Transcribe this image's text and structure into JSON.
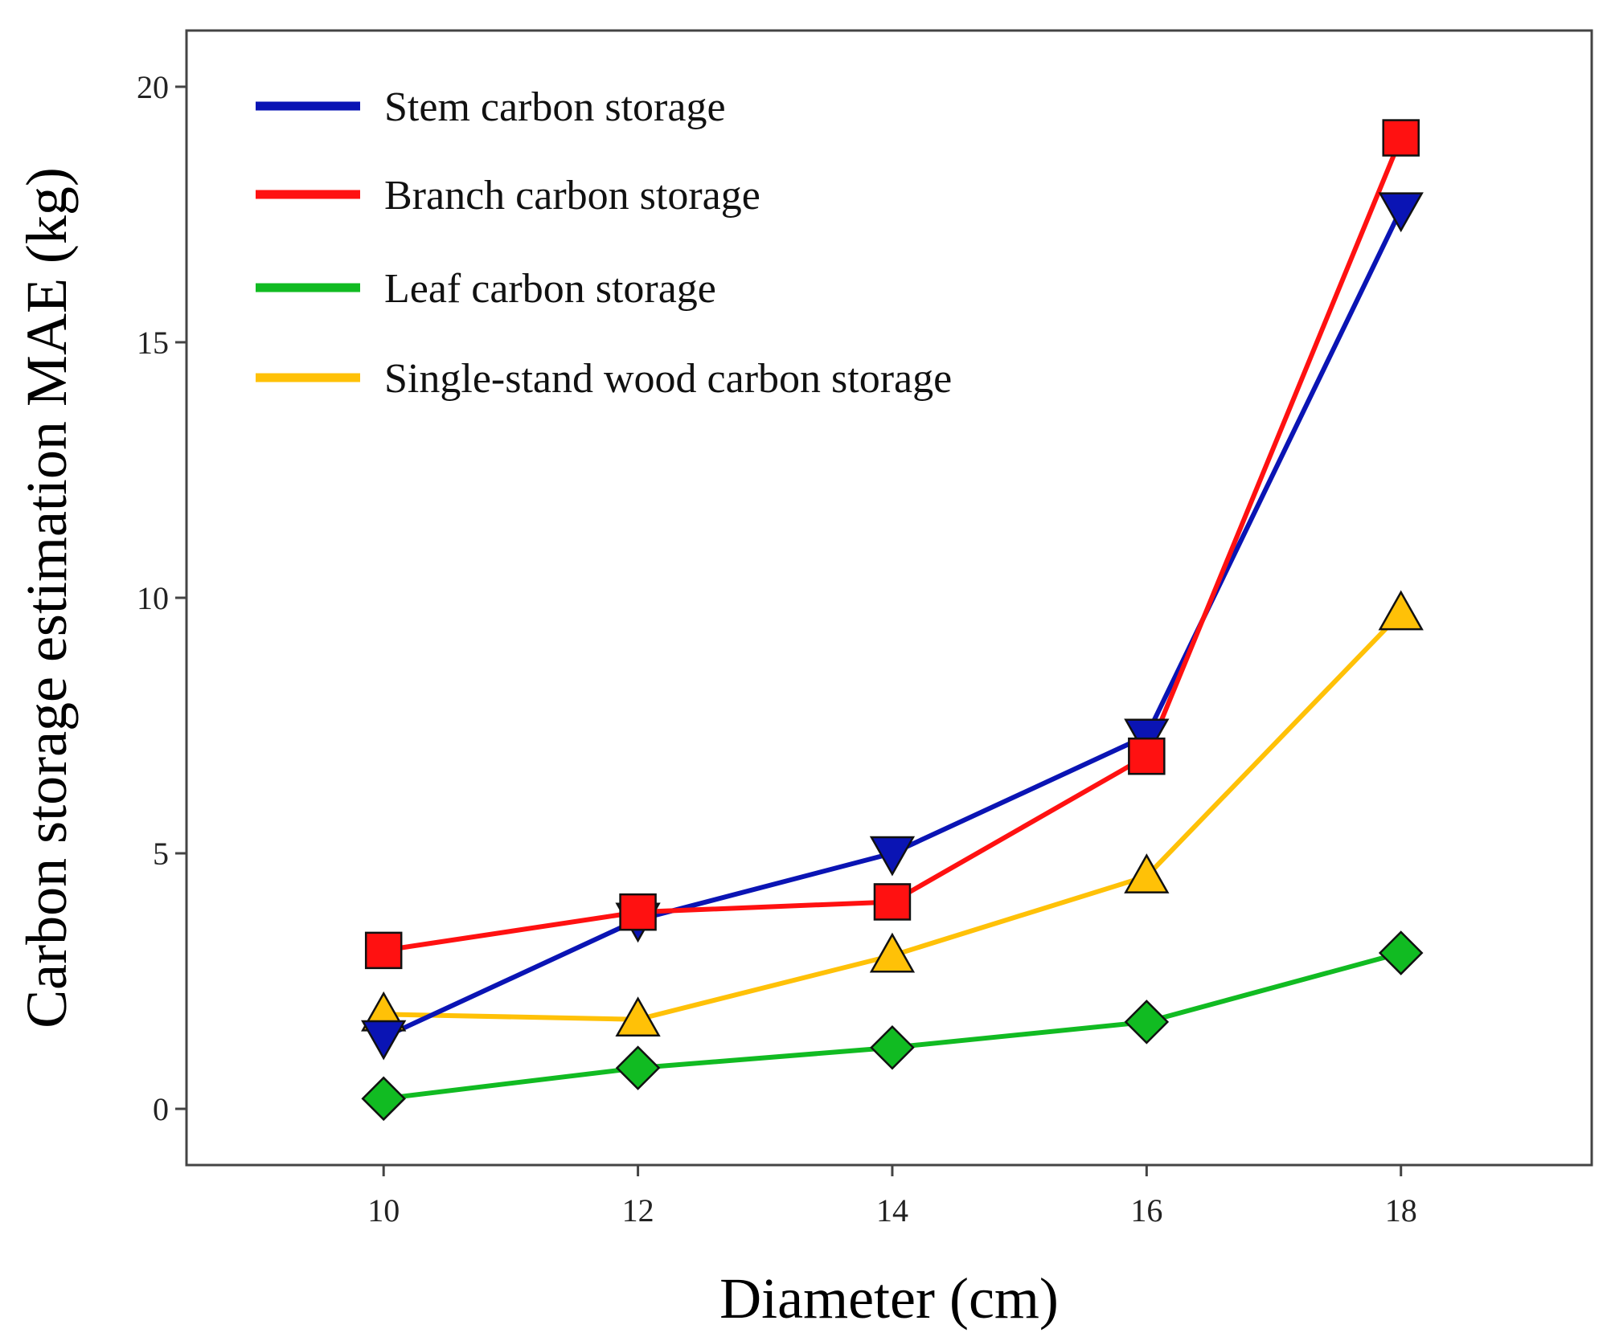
{
  "chart_data": {
    "type": "line",
    "title": "",
    "xlabel": "Diameter (cm)",
    "ylabel": "Carbon storage estimation MAE (kg)",
    "x": [
      10,
      12,
      14,
      16,
      18
    ],
    "xticks": [
      10,
      12,
      14,
      16,
      18
    ],
    "yticks": [
      0,
      5,
      10,
      15,
      20
    ],
    "xlim": [
      8.45,
      19.5
    ],
    "ylim": [
      -1.1,
      21.1
    ],
    "grid": false,
    "legend_position": "top-left",
    "series": [
      {
        "name": "Stem carbon storage",
        "color": "#0a14b4",
        "marker": "triangle-down",
        "values": [
          1.4,
          3.7,
          5.0,
          7.3,
          17.6
        ]
      },
      {
        "name": "Branch carbon storage",
        "color": "#ff1111",
        "marker": "square",
        "values": [
          3.1,
          3.85,
          4.05,
          6.9,
          19.0
        ]
      },
      {
        "name": "Leaf carbon storage",
        "color": "#11bb22",
        "marker": "diamond",
        "values": [
          0.2,
          0.8,
          1.2,
          1.7,
          3.05
        ]
      },
      {
        "name": "Single-stand wood carbon storage",
        "color": "#ffc107",
        "marker": "triangle-up",
        "values": [
          1.85,
          1.75,
          3.0,
          4.55,
          9.7
        ]
      }
    ]
  }
}
